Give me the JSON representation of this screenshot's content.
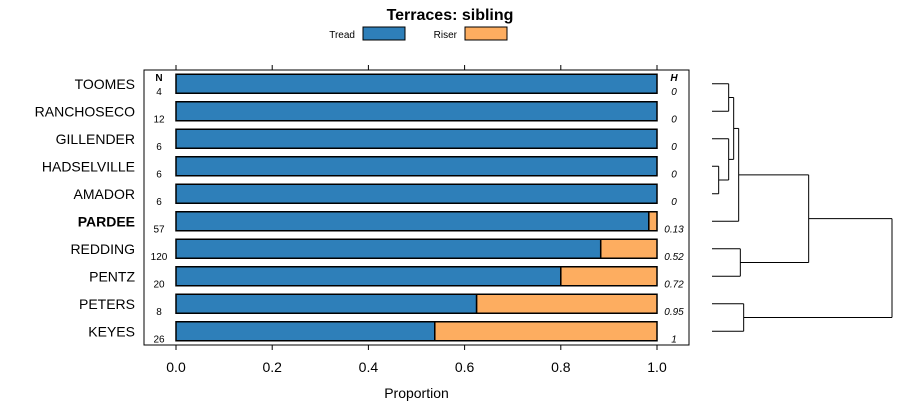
{
  "chart_data": {
    "type": "bar",
    "subtype": "stacked-horizontal-proportion",
    "title": "Terraces: sibling",
    "xlabel": "Proportion",
    "ylabel": "",
    "xlim": [
      0,
      1
    ],
    "x_ticks": [
      "0.0",
      "0.2",
      "0.4",
      "0.6",
      "0.8",
      "1.0"
    ],
    "legend": {
      "placement": "top",
      "entries": [
        {
          "name": "Tread",
          "color": "#2e7fb9"
        },
        {
          "name": "Riser",
          "color": "#fdad60"
        }
      ]
    },
    "n_header": "N",
    "h_header": "H",
    "categories": [
      "TOOMES",
      "RANCHOSECO",
      "GILLENDER",
      "HADSELVILLE",
      "AMADOR",
      "PARDEE",
      "REDDING",
      "PENTZ",
      "PETERS",
      "KEYES"
    ],
    "highlighted_category": "PARDEE",
    "n_values": [
      "4",
      "12",
      "6",
      "6",
      "6",
      "57",
      "120",
      "20",
      "8",
      "26"
    ],
    "h_values": [
      "0",
      "0",
      "0",
      "0",
      "0",
      "0.13",
      "0.52",
      "0.72",
      "0.95",
      "1"
    ],
    "series": [
      {
        "name": "Tread",
        "values": [
          1.0,
          1.0,
          1.0,
          1.0,
          1.0,
          0.983,
          0.883,
          0.8,
          0.625,
          0.538
        ]
      },
      {
        "name": "Riser",
        "values": [
          0.0,
          0.0,
          0.0,
          0.0,
          0.0,
          0.017,
          0.117,
          0.2,
          0.375,
          0.462
        ]
      }
    ],
    "dendrogram": {
      "merges": [
        {
          "a": 3,
          "b": 4,
          "height": 0.02
        },
        {
          "a": 2,
          "b": "m0",
          "height": 0.05
        },
        {
          "a": 0,
          "b": 1,
          "height": 0.05
        },
        {
          "a": "m2",
          "b": "m1",
          "height": 0.065
        },
        {
          "a": "m3",
          "b": 5,
          "height": 0.08
        },
        {
          "a": 6,
          "b": 7,
          "height": 0.085
        },
        {
          "a": 8,
          "b": 9,
          "height": 0.095
        },
        {
          "a": "m4",
          "b": "m5",
          "height": 0.29
        },
        {
          "a": "m7",
          "b": "m6",
          "height": 0.54
        }
      ]
    }
  }
}
